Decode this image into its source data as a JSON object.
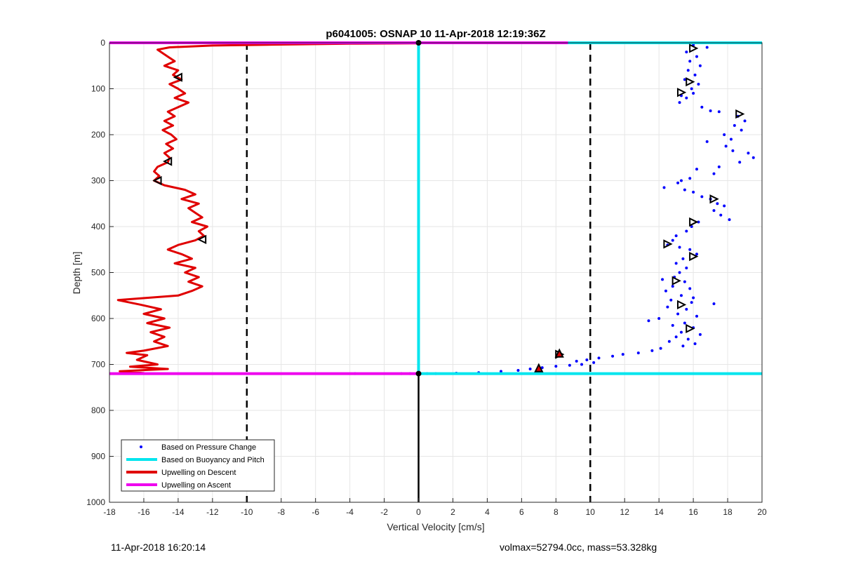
{
  "chart_data": {
    "type": "scatter",
    "title": "p6041005: OSNAP 10 11-Apr-2018 12:19:36Z",
    "xlabel": "Vertical Velocity [cm/s]",
    "ylabel": "Depth [m]",
    "xlim": [
      -18,
      20
    ],
    "ylim": [
      0,
      1000
    ],
    "y_reversed": true,
    "grid": true,
    "xticks": [
      -18,
      -16,
      -14,
      -12,
      -10,
      -8,
      -6,
      -4,
      -2,
      0,
      2,
      4,
      6,
      8,
      10,
      12,
      14,
      16,
      18,
      20
    ],
    "yticks": [
      0,
      100,
      200,
      300,
      400,
      500,
      600,
      700,
      800,
      900,
      1000
    ],
    "legend_position": "bottom-left",
    "reference_lines": {
      "vertical_dashed": [
        -10,
        10
      ],
      "zero_line_depth_range": [
        720,
        1000
      ]
    },
    "series": [
      {
        "name": "Based on Pressure Change",
        "style": "points",
        "color": "#0000ff",
        "points": [
          [
            16.0,
            5
          ],
          [
            16.8,
            10
          ],
          [
            15.6,
            20
          ],
          [
            16.2,
            30
          ],
          [
            15.8,
            40
          ],
          [
            16.4,
            50
          ],
          [
            15.7,
            60
          ],
          [
            16.1,
            70
          ],
          [
            15.5,
            80
          ],
          [
            16.3,
            90
          ],
          [
            15.9,
            100
          ],
          [
            16.0,
            110
          ],
          [
            15.3,
            115
          ],
          [
            15.6,
            120
          ],
          [
            15.2,
            130
          ],
          [
            16.5,
            140
          ],
          [
            17.0,
            148
          ],
          [
            17.5,
            150
          ],
          [
            18.6,
            160
          ],
          [
            19.0,
            170
          ],
          [
            18.4,
            180
          ],
          [
            18.8,
            190
          ],
          [
            17.8,
            200
          ],
          [
            18.2,
            210
          ],
          [
            16.8,
            215
          ],
          [
            17.9,
            225
          ],
          [
            18.3,
            235
          ],
          [
            19.2,
            240
          ],
          [
            19.5,
            250
          ],
          [
            18.7,
            260
          ],
          [
            17.5,
            270
          ],
          [
            16.2,
            275
          ],
          [
            17.2,
            285
          ],
          [
            15.8,
            295
          ],
          [
            15.3,
            300
          ],
          [
            15.1,
            305
          ],
          [
            14.3,
            315
          ],
          [
            15.5,
            320
          ],
          [
            16.0,
            325
          ],
          [
            16.5,
            335
          ],
          [
            17.0,
            340
          ],
          [
            17.4,
            350
          ],
          [
            17.8,
            355
          ],
          [
            17.2,
            365
          ],
          [
            17.6,
            375
          ],
          [
            18.1,
            385
          ],
          [
            16.3,
            390
          ],
          [
            15.9,
            400
          ],
          [
            15.6,
            410
          ],
          [
            15.0,
            420
          ],
          [
            14.8,
            430
          ],
          [
            14.5,
            440
          ],
          [
            15.2,
            445
          ],
          [
            15.8,
            450
          ],
          [
            16.2,
            460
          ],
          [
            15.4,
            470
          ],
          [
            15.0,
            480
          ],
          [
            15.6,
            490
          ],
          [
            15.2,
            500
          ],
          [
            14.9,
            510
          ],
          [
            14.2,
            515
          ],
          [
            15.5,
            520
          ],
          [
            14.8,
            530
          ],
          [
            15.8,
            535
          ],
          [
            14.4,
            540
          ],
          [
            15.3,
            550
          ],
          [
            16.0,
            555
          ],
          [
            14.7,
            560
          ],
          [
            15.9,
            565
          ],
          [
            17.2,
            568
          ],
          [
            14.5,
            575
          ],
          [
            15.6,
            580
          ],
          [
            15.1,
            590
          ],
          [
            16.2,
            595
          ],
          [
            14.0,
            600
          ],
          [
            13.4,
            605
          ],
          [
            15.5,
            610
          ],
          [
            14.8,
            615
          ],
          [
            16.0,
            620
          ],
          [
            15.3,
            630
          ],
          [
            16.4,
            635
          ],
          [
            15.0,
            640
          ],
          [
            15.7,
            645
          ],
          [
            14.6,
            650
          ],
          [
            16.1,
            655
          ],
          [
            15.4,
            660
          ],
          [
            14.1,
            665
          ],
          [
            13.6,
            670
          ],
          [
            12.8,
            675
          ],
          [
            11.9,
            678
          ],
          [
            11.3,
            682
          ],
          [
            10.5,
            686
          ],
          [
            9.8,
            690
          ],
          [
            9.2,
            693
          ],
          [
            10.2,
            696
          ],
          [
            9.5,
            700
          ],
          [
            8.8,
            702
          ],
          [
            8.0,
            704
          ],
          [
            7.2,
            707
          ],
          [
            6.5,
            710
          ],
          [
            5.8,
            713
          ],
          [
            4.8,
            715
          ],
          [
            3.5,
            718
          ],
          [
            2.2,
            719
          ],
          [
            1.0,
            720
          ],
          [
            0.5,
            720
          ],
          [
            0.0,
            720
          ],
          [
            -0.5,
            720
          ],
          [
            -1.0,
            720
          ],
          [
            -3.7,
            720
          ]
        ]
      },
      {
        "name": "Based on Buoyancy and Pitch",
        "style": "line",
        "color": "#00e5ee",
        "segments": [
          [
            [
              0.0,
              0
            ],
            [
              0.0,
              720
            ]
          ],
          [
            [
              0.0,
              0
            ],
            [
              20.0,
              0
            ]
          ],
          [
            [
              0.0,
              720
            ],
            [
              20.0,
              720
            ]
          ]
        ]
      },
      {
        "name": "Upwelling on Descent",
        "style": "line",
        "color": "#e00000",
        "points": [
          [
            0.0,
            1
          ],
          [
            -4.0,
            2
          ],
          [
            -8.5,
            4
          ],
          [
            -12.0,
            6
          ],
          [
            -14.5,
            10
          ],
          [
            -15.2,
            15
          ],
          [
            -15.0,
            20
          ],
          [
            -14.6,
            30
          ],
          [
            -14.2,
            40
          ],
          [
            -14.8,
            50
          ],
          [
            -14.0,
            60
          ],
          [
            -14.3,
            70
          ],
          [
            -13.8,
            80
          ],
          [
            -14.5,
            90
          ],
          [
            -14.0,
            100
          ],
          [
            -13.6,
            110
          ],
          [
            -14.2,
            120
          ],
          [
            -13.4,
            130
          ],
          [
            -14.0,
            140
          ],
          [
            -14.6,
            150
          ],
          [
            -14.2,
            160
          ],
          [
            -14.8,
            170
          ],
          [
            -14.3,
            180
          ],
          [
            -14.9,
            190
          ],
          [
            -14.4,
            200
          ],
          [
            -14.1,
            210
          ],
          [
            -14.7,
            220
          ],
          [
            -14.3,
            230
          ],
          [
            -14.8,
            240
          ],
          [
            -14.5,
            250
          ],
          [
            -14.6,
            260
          ],
          [
            -15.2,
            270
          ],
          [
            -15.4,
            280
          ],
          [
            -15.1,
            290
          ],
          [
            -15.4,
            300
          ],
          [
            -14.8,
            310
          ],
          [
            -13.6,
            320
          ],
          [
            -13.0,
            330
          ],
          [
            -13.8,
            340
          ],
          [
            -12.8,
            350
          ],
          [
            -13.4,
            360
          ],
          [
            -13.0,
            370
          ],
          [
            -12.6,
            380
          ],
          [
            -13.2,
            390
          ],
          [
            -12.3,
            400
          ],
          [
            -12.8,
            410
          ],
          [
            -12.5,
            420
          ],
          [
            -13.0,
            430
          ],
          [
            -14.0,
            440
          ],
          [
            -14.6,
            450
          ],
          [
            -13.8,
            460
          ],
          [
            -13.2,
            470
          ],
          [
            -14.2,
            480
          ],
          [
            -13.0,
            490
          ],
          [
            -13.6,
            500
          ],
          [
            -12.8,
            510
          ],
          [
            -13.4,
            520
          ],
          [
            -12.6,
            530
          ],
          [
            -13.2,
            540
          ],
          [
            -14.0,
            550
          ],
          [
            -17.5,
            560
          ],
          [
            -16.2,
            570
          ],
          [
            -15.0,
            580
          ],
          [
            -16.0,
            590
          ],
          [
            -14.8,
            600
          ],
          [
            -15.8,
            610
          ],
          [
            -14.5,
            620
          ],
          [
            -15.6,
            630
          ],
          [
            -14.8,
            640
          ],
          [
            -15.4,
            650
          ],
          [
            -14.6,
            660
          ],
          [
            -16.0,
            670
          ],
          [
            -17.0,
            675
          ],
          [
            -15.8,
            680
          ],
          [
            -16.4,
            690
          ],
          [
            -15.2,
            700
          ],
          [
            -16.8,
            705
          ],
          [
            -14.6,
            710
          ],
          [
            -17.4,
            715
          ],
          [
            -16.0,
            719
          ],
          [
            -18.0,
            720
          ]
        ]
      },
      {
        "name": "Upwelling on Ascent",
        "style": "line",
        "color": "#ee00ee",
        "segments": [
          [
            [
              -18.0,
              0
            ],
            [
              8.7,
              0
            ]
          ],
          [
            [
              -18.0,
              720
            ],
            [
              0.0,
              720
            ]
          ]
        ]
      }
    ],
    "markers": {
      "descent_triangles": [
        [
          -14.0,
          75
        ],
        [
          -14.6,
          258
        ],
        [
          -15.2,
          300
        ],
        [
          -12.6,
          428
        ]
      ],
      "ascent_triangles": [
        [
          16.0,
          12
        ],
        [
          15.8,
          85
        ],
        [
          15.3,
          108
        ],
        [
          18.7,
          155
        ],
        [
          17.2,
          340
        ],
        [
          16.0,
          390
        ],
        [
          14.5,
          438
        ],
        [
          16.0,
          465
        ],
        [
          15.0,
          518
        ],
        [
          15.3,
          570
        ],
        [
          15.8,
          622
        ],
        [
          8.2,
          678
        ]
      ],
      "red_triangles": [
        [
          8.2,
          676
        ],
        [
          7.0,
          708
        ]
      ],
      "surface_dots": [
        [
          0.0,
          720
        ],
        [
          0.0,
          0
        ]
      ]
    }
  },
  "footer": {
    "left": "11-Apr-2018 16:20:14",
    "right": "volmax=52794.0cc, mass=53.328kg"
  }
}
